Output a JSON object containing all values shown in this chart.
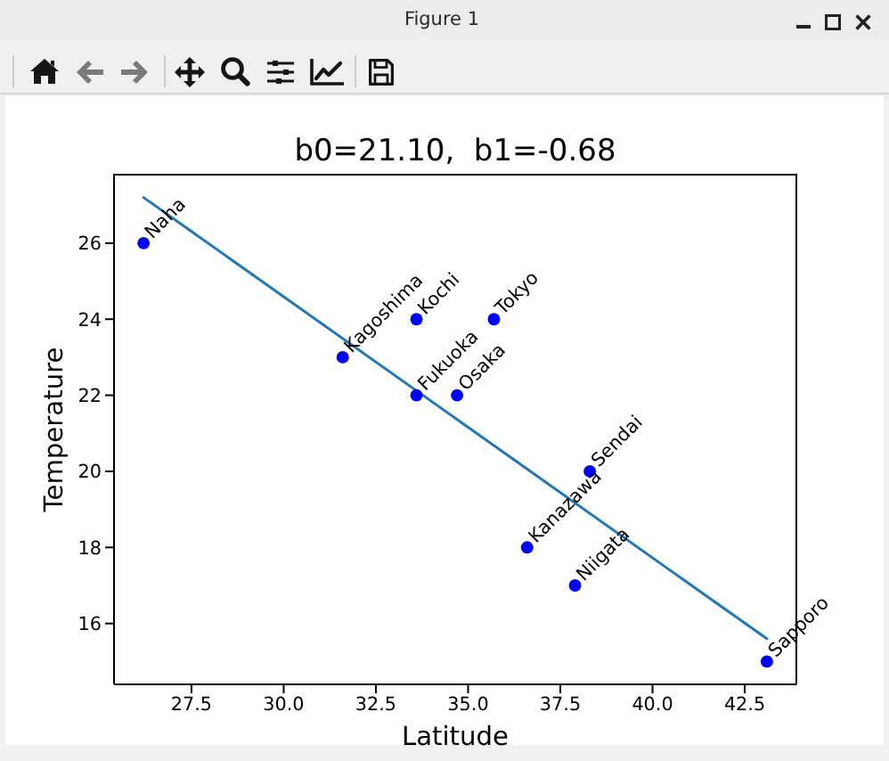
{
  "chart_data": {
    "type": "scatter",
    "title": "b0=21.10,  b1=-0.68",
    "xlabel": "Latitude",
    "ylabel": "Temperature",
    "series": [
      {
        "type": "scatter",
        "color": "#0000ff",
        "marker": "circle",
        "x": [
          26.2,
          31.6,
          33.6,
          35.7,
          33.6,
          34.7,
          38.3,
          36.6,
          37.9,
          43.1
        ],
        "values": [
          26,
          23,
          24,
          24,
          22,
          22,
          20,
          18,
          17,
          15
        ]
      },
      {
        "type": "line",
        "color": "#1f77b4",
        "marker": "none",
        "line_style": "solid",
        "x": [
          26.2,
          43.1
        ],
        "values": [
          27.2,
          15.6
        ]
      }
    ],
    "xlim": [
      25.4,
      43.9
    ],
    "xticks": [
      27.5,
      {
        "value": 30,
        "label": "30.0"
      },
      32.5,
      {
        "value": 35,
        "label": "35.0"
      },
      37.5,
      {
        "value": 40,
        "label": "40.0"
      },
      42.5
    ],
    "ylim": [
      14.4,
      27.8
    ],
    "yticks": [
      16,
      18,
      20,
      22,
      24,
      26
    ],
    "annotations": [
      "Figure 1",
      {
        "text": "Naha",
        "x": 26.2,
        "y": 26
      },
      {
        "text": "Kagoshima",
        "x": 31.6,
        "y": 23
      },
      {
        "text": "Kochi",
        "x": 33.6,
        "y": 24
      },
      {
        "text": "Tokyo",
        "x": 35.7,
        "y": 24
      },
      {
        "text": "Fukuoka",
        "x": 33.6,
        "y": 22
      },
      {
        "text": "Osaka",
        "x": 34.7,
        "y": 22
      },
      {
        "text": "Sendai",
        "x": 38.3,
        "y": 20
      },
      {
        "text": "Kanazawa",
        "x": 36.6,
        "y": 18
      },
      {
        "text": "Niigata",
        "x": 37.9,
        "y": 17
      },
      {
        "text": "Sapporo",
        "x": 43.1,
        "y": 15
      }
    ]
  }
}
